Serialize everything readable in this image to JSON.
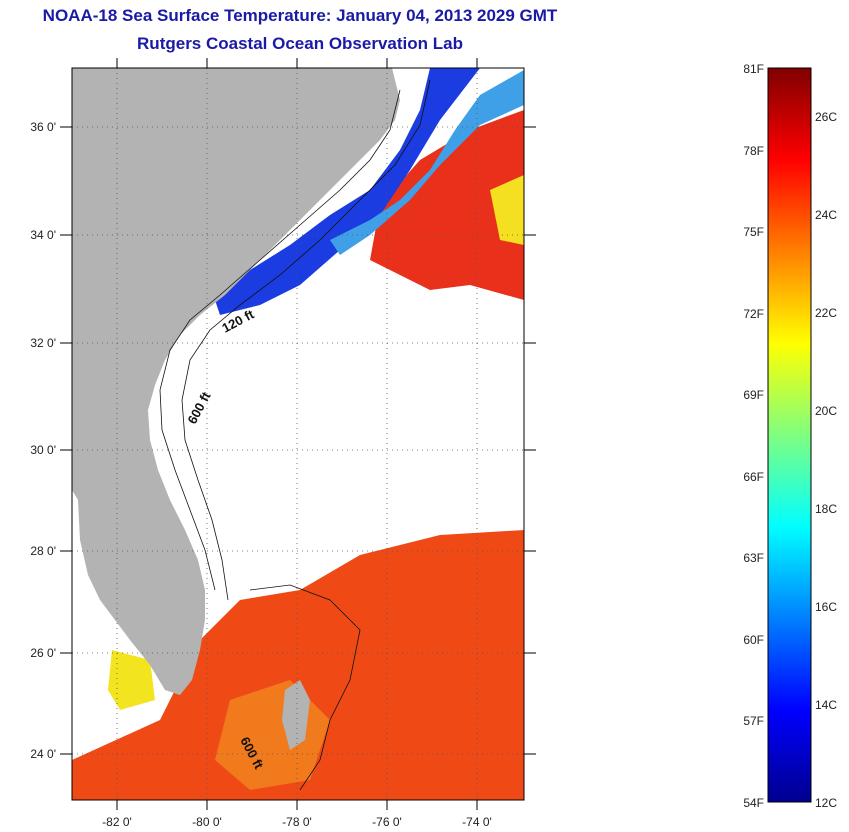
{
  "header": {
    "title": "NOAA-18 Sea Surface Temperature:  January 04, 2013 2029 GMT",
    "subtitle": "Rutgers Coastal Ocean Observation Lab"
  },
  "map": {
    "lat_labels": [
      "36 0'",
      "34 0'",
      "32 0'",
      "30 0'",
      "28 0'",
      "26 0'",
      "24 0'"
    ],
    "lon_labels": [
      "-82 0'",
      "-80 0'",
      "-78 0'",
      "-76 0'",
      "-74 0'"
    ],
    "contour_labels": [
      "120 ft",
      "600 ft",
      "600 ft"
    ]
  },
  "colorbar": {
    "fahrenheit": [
      "81F",
      "78F",
      "75F",
      "72F",
      "69F",
      "66F",
      "63F",
      "60F",
      "57F",
      "54F"
    ],
    "celsius": [
      "26C",
      "24C",
      "22C",
      "20C",
      "18C",
      "16C",
      "14C",
      "12C"
    ]
  },
  "colors": {
    "land": "#b3b3b3",
    "no_data": "#ffffff",
    "title_blue": "#1a1aa6"
  }
}
